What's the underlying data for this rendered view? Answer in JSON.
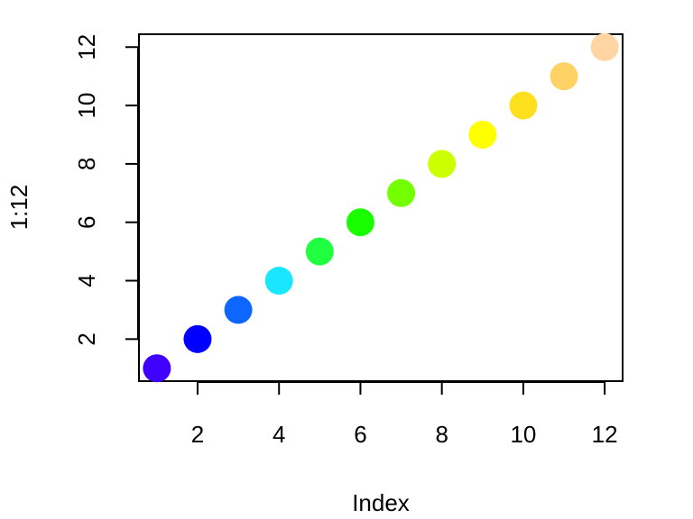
{
  "chart_data": {
    "type": "scatter",
    "title": "",
    "xlabel": "Index",
    "ylabel": "1:12",
    "x": [
      1,
      2,
      3,
      4,
      5,
      6,
      7,
      8,
      9,
      10,
      11,
      12
    ],
    "y": [
      1,
      2,
      3,
      4,
      5,
      6,
      7,
      8,
      9,
      10,
      11,
      12
    ],
    "point_colors": [
      "#4000FF",
      "#0000FF",
      "#0D66FF",
      "#1AE6FF",
      "#20FF40",
      "#1AFF00",
      "#73FF00",
      "#CCFF00",
      "#FFFF00",
      "#FFE01F",
      "#FFD266",
      "#FFD6A3"
    ],
    "xlim": [
      0.56,
      12.44
    ],
    "ylim": [
      0.56,
      12.44
    ],
    "xticks": [
      2,
      4,
      6,
      8,
      10,
      12
    ],
    "yticks": [
      2,
      4,
      6,
      8,
      10,
      12
    ],
    "grid": false,
    "legend": "none"
  }
}
